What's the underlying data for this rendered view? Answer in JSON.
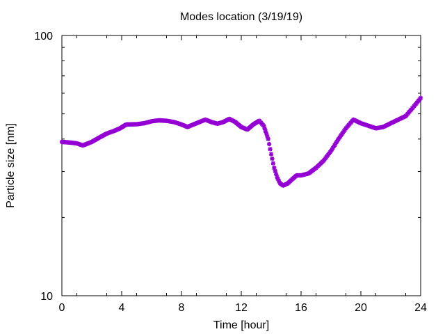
{
  "chart_data": {
    "type": "scatter",
    "title": "Modes location (3/19/19)",
    "xlabel": "Time [hour]",
    "ylabel": "Particle size [nm]",
    "xlim": [
      0,
      24
    ],
    "ylim": [
      10,
      100
    ],
    "yscale": "log",
    "xticks": [
      0,
      4,
      8,
      12,
      16,
      20,
      24
    ],
    "xtick_labels": [
      "0",
      "4",
      "8",
      "12",
      "16",
      "20",
      "24"
    ],
    "yticks": [
      10,
      100
    ],
    "ytick_labels": [
      "10",
      "100"
    ],
    "grid": false,
    "legend": "none",
    "marker_color": "#9400d3",
    "marker": "star",
    "series": [
      {
        "x": [
          0.0,
          0.5,
          1.0,
          1.4,
          2.0,
          2.5,
          3.0,
          3.5,
          3.9,
          4.3,
          5.0,
          5.5,
          6.0,
          6.5,
          7.0,
          7.5,
          8.0,
          8.4,
          8.8,
          9.2,
          9.6,
          10.0,
          10.4,
          10.8,
          11.2,
          11.6,
          12.0,
          12.4,
          12.8,
          13.2,
          13.5,
          13.8,
          14.0,
          14.2,
          14.4,
          14.6,
          14.8,
          15.1,
          15.4,
          15.7,
          16.0,
          16.5,
          17.0,
          17.5,
          18.0,
          18.5,
          19.0,
          19.5,
          20.0,
          20.5,
          21.0,
          21.5,
          22.0,
          22.5,
          23.0,
          23.5,
          24.0
        ],
        "y": [
          39.0,
          38.8,
          38.5,
          37.8,
          39.0,
          40.5,
          42.0,
          43.0,
          44.0,
          45.5,
          45.6,
          46.0,
          46.8,
          47.2,
          47.0,
          46.5,
          45.5,
          44.5,
          45.5,
          46.5,
          47.5,
          46.5,
          45.8,
          46.5,
          47.8,
          46.5,
          44.5,
          43.5,
          45.5,
          47.0,
          45.0,
          40.0,
          35.0,
          31.0,
          28.5,
          27.0,
          26.5,
          27.0,
          28.0,
          29.0,
          29.0,
          29.5,
          31.0,
          33.0,
          36.0,
          40.0,
          44.0,
          47.5,
          46.0,
          45.0,
          44.0,
          44.5,
          46.0,
          47.5,
          49.0,
          53.0,
          57.5
        ]
      }
    ]
  }
}
